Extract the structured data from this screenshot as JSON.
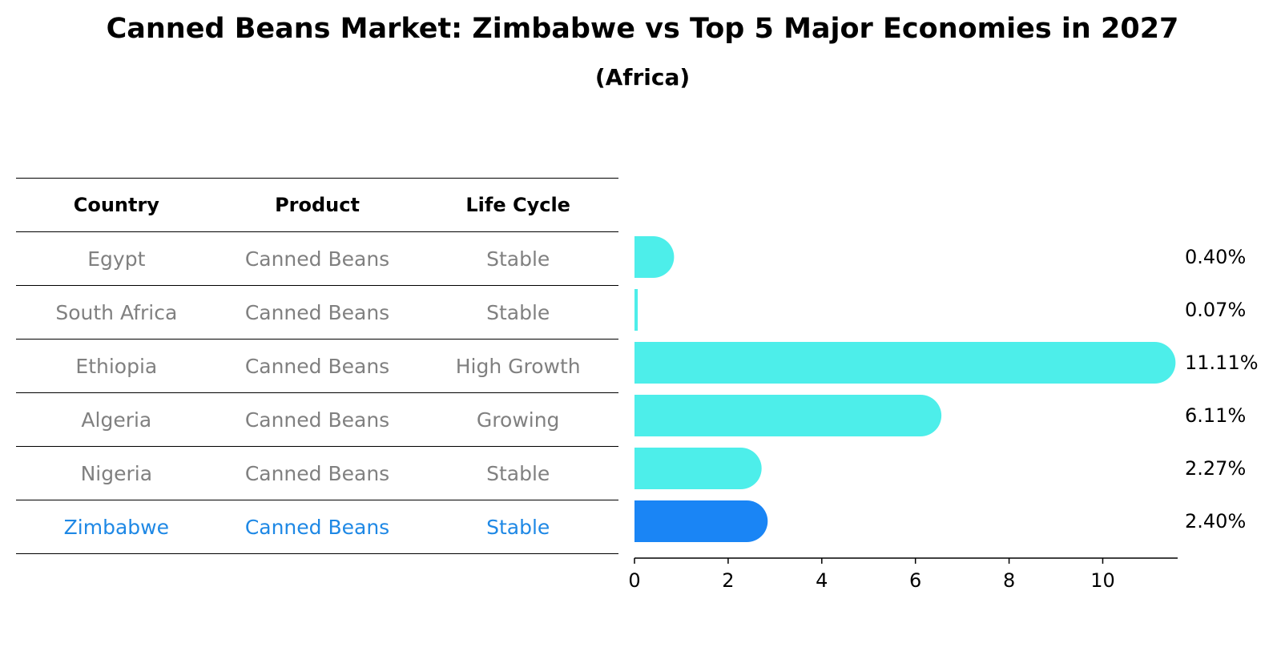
{
  "title": "Canned Beans Market: Zimbabwe vs Top 5 Major Economies in 2027",
  "subtitle": "(Africa)",
  "table": {
    "headers": [
      "Country",
      "Product",
      "Life Cycle"
    ],
    "rows": [
      [
        "Egypt",
        "Canned Beans",
        "Stable"
      ],
      [
        "South Africa",
        "Canned Beans",
        "Stable"
      ],
      [
        "Ethiopia",
        "Canned Beans",
        "High Growth"
      ],
      [
        "Algeria",
        "Canned Beans",
        "Growing"
      ],
      [
        "Nigeria",
        "Canned Beans",
        "Stable"
      ],
      [
        "Zimbabwe",
        "Canned Beans",
        "Stable"
      ]
    ],
    "highlight_row": 5
  },
  "colors": {
    "bar": "#4deeea",
    "highlight_bar": "#1a85f5",
    "highlight_text": "#1e88e5",
    "muted_text": "#808080"
  },
  "chart_data": {
    "type": "bar",
    "orientation": "horizontal",
    "categories": [
      "Egypt",
      "South Africa",
      "Ethiopia",
      "Algeria",
      "Nigeria",
      "Zimbabwe"
    ],
    "values": [
      0.4,
      0.07,
      11.11,
      6.11,
      2.27,
      2.4
    ],
    "value_labels": [
      "0.40%",
      "0.07%",
      "11.11%",
      "6.11%",
      "2.27%",
      "2.40%"
    ],
    "highlight": "Zimbabwe",
    "xlim": [
      0,
      11.6
    ],
    "xticks": [
      0,
      2,
      4,
      6,
      8,
      10
    ],
    "xlabel": "",
    "ylabel": "",
    "grid": false
  }
}
